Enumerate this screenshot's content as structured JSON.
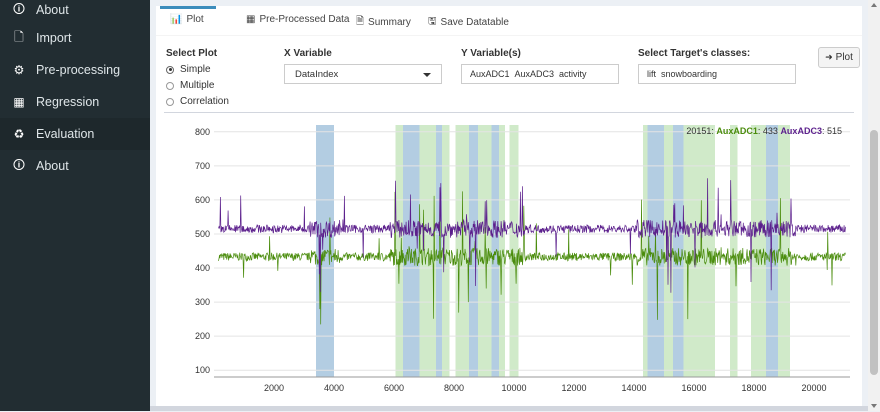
{
  "sidebar": {
    "items": [
      {
        "label": "About",
        "icon": "info-circle-icon",
        "glyph": "🛈"
      },
      {
        "label": "Import",
        "icon": "file-icon",
        "glyph": "🗋"
      },
      {
        "label": "Pre-processing",
        "icon": "cogs-icon",
        "glyph": "⚙"
      },
      {
        "label": "Regression",
        "icon": "table-grid-icon",
        "glyph": "▦"
      },
      {
        "label": "Evaluation",
        "icon": "recycle-icon",
        "glyph": "♻"
      },
      {
        "label": "About",
        "icon": "info-circle-icon",
        "glyph": "🛈"
      }
    ]
  },
  "tabs": [
    {
      "label": "Plot",
      "icon": "bar-chart-icon",
      "glyph": "📊"
    },
    {
      "label": "Pre-Processed Data",
      "icon": "table-icon",
      "glyph": "▦"
    },
    {
      "label": "Summary",
      "icon": "document-icon",
      "glyph": "🗎"
    },
    {
      "label": "Save Datatable",
      "icon": "save-icon",
      "glyph": "🖫"
    }
  ],
  "controls": {
    "select_plot_label": "Select Plot",
    "plot_options": [
      "Simple",
      "Multiple",
      "Correlation"
    ],
    "selected_plot": "Simple",
    "x_label": "X Variable",
    "x_value": "DataIndex",
    "y_label": "Y Variable(s)",
    "y_values": [
      "AuxADC1",
      "AuxADC3",
      "activity"
    ],
    "target_label": "Select Target's classes:",
    "target_values": [
      "lift",
      "snowboarding"
    ],
    "plot_button": "Plot"
  },
  "chart_data": {
    "type": "line",
    "x_range": [
      0,
      21200
    ],
    "ylim": [
      80,
      820
    ],
    "x_ticks": [
      2000,
      4000,
      6000,
      8000,
      10000,
      12000,
      14000,
      16000,
      18000,
      20000
    ],
    "y_ticks": [
      100,
      200,
      300,
      400,
      500,
      600,
      700,
      800
    ],
    "series": [
      {
        "name": "AuxADC1",
        "color": "#4a8c0c",
        "baseline": 433
      },
      {
        "name": "AuxADC3",
        "color": "#5b1f8c",
        "baseline": 515
      }
    ],
    "legend": {
      "index": "20151",
      "parts": [
        {
          "name": "AuxADC1",
          "value": "433",
          "color": "#4a8c0c"
        },
        {
          "name": "AuxADC3",
          "value": "515",
          "color": "#5b1f8c"
        }
      ]
    },
    "class_bands": [
      {
        "class": "lift",
        "color": "#a6c4dd",
        "ranges": [
          [
            3400,
            4000
          ],
          [
            6300,
            6850
          ],
          [
            7400,
            7600
          ],
          [
            8500,
            8800
          ],
          [
            9250,
            9500
          ],
          [
            14450,
            15000
          ],
          [
            15300,
            15650
          ],
          [
            18400,
            18800
          ]
        ]
      },
      {
        "class": "snowboarding",
        "color": "#c8e6c0",
        "ranges": [
          [
            6050,
            6300
          ],
          [
            6850,
            7400
          ],
          [
            7600,
            7850
          ],
          [
            8050,
            8500
          ],
          [
            8800,
            9250
          ],
          [
            9500,
            9700
          ],
          [
            9850,
            10150
          ],
          [
            14300,
            14450
          ],
          [
            15000,
            15300
          ],
          [
            15650,
            16700
          ],
          [
            17200,
            17450
          ],
          [
            17900,
            18400
          ],
          [
            18800,
            19200
          ]
        ]
      }
    ]
  }
}
